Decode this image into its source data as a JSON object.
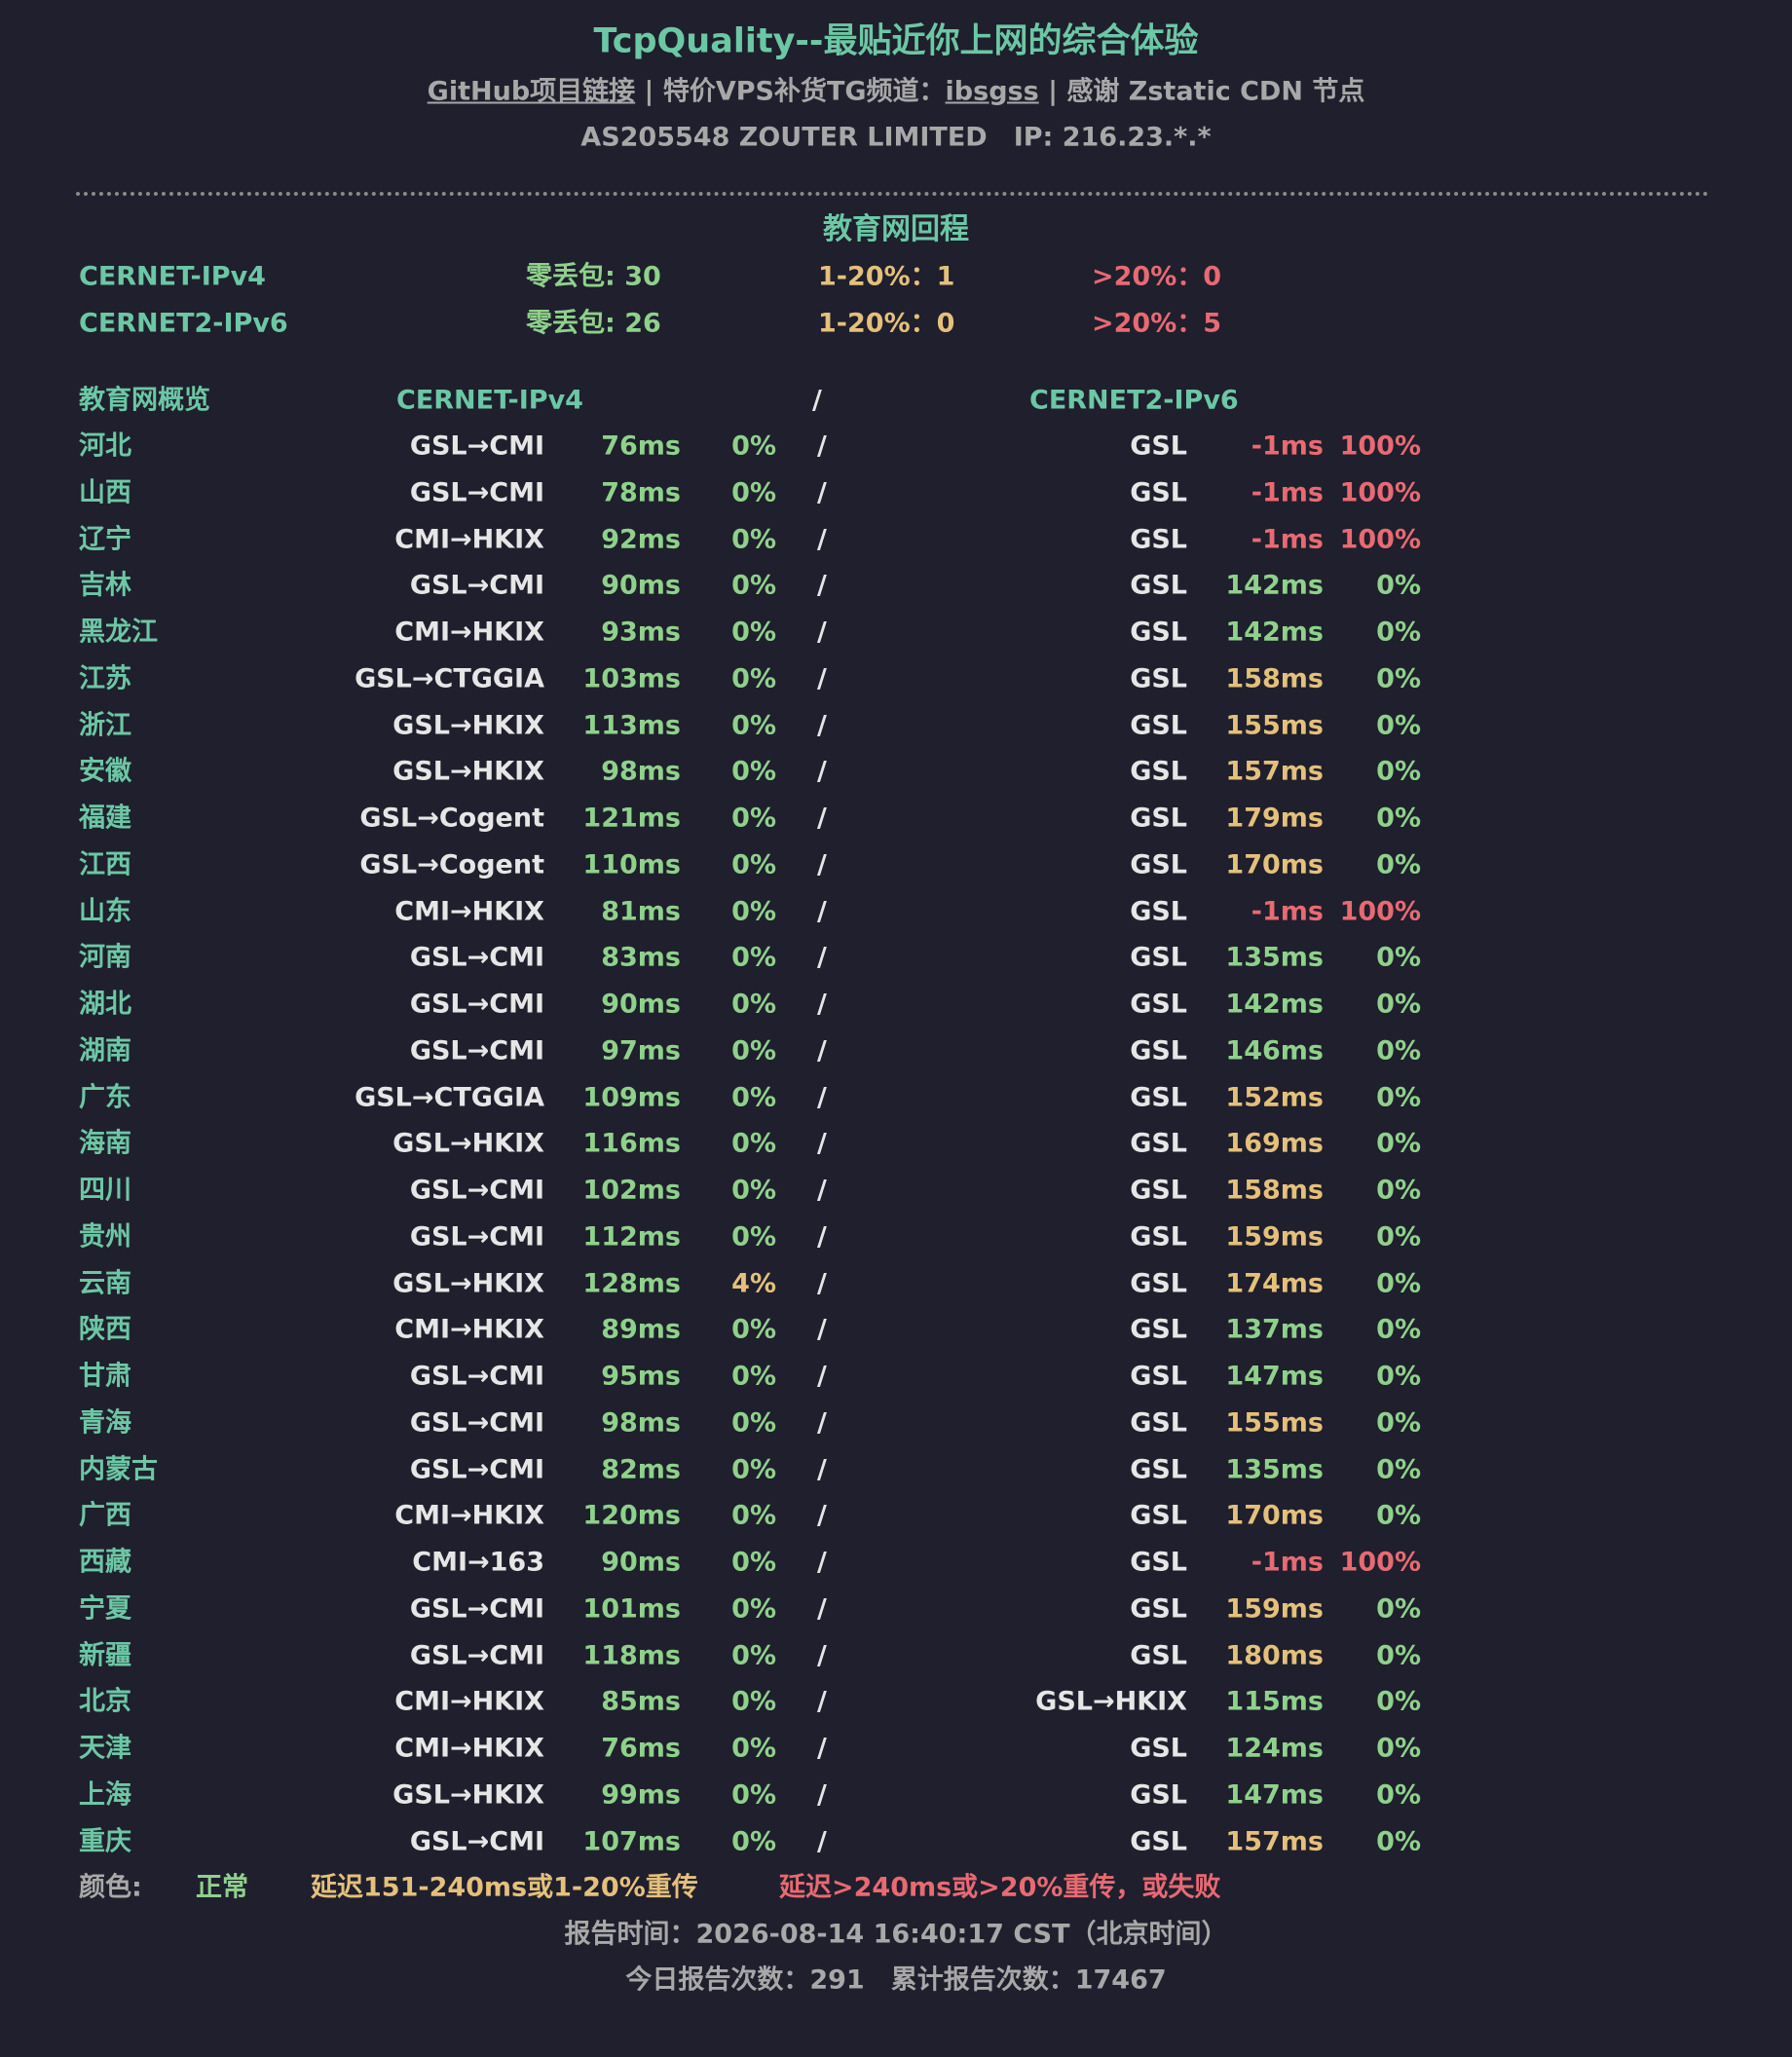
{
  "header": {
    "title": "TcpQuality--最贴近你上网的综合体验",
    "links": [
      "GitHub项目链接",
      "|",
      "特价VPS补货TG频道：",
      "ibsgss",
      "|",
      "感谢 Zstatic CDN 节点"
    ],
    "asn": "AS205548 ZOUTER LIMITED",
    "ip": "IP: 216.23.*.*"
  },
  "summary": {
    "title": "教育网回程",
    "rows": [
      [
        "CERNET-IPv4",
        "零丢包: 30",
        "1-20%：1",
        ">20%：0"
      ],
      [
        "CERNET2-IPv6",
        "零丢包: 26",
        "1-20%：0",
        ">20%：5"
      ]
    ]
  },
  "overview": {
    "header": [
      "教育网概览",
      "CERNET-IPv4",
      "/",
      "CERNET2-IPv6"
    ],
    "rows": [
      [
        "河北",
        "GSL→CMI",
        "76ms",
        "0%",
        "GSL",
        "-1ms",
        "100%"
      ],
      [
        "山西",
        "GSL→CMI",
        "78ms",
        "0%",
        "GSL",
        "-1ms",
        "100%"
      ],
      [
        "辽宁",
        "CMI→HKIX",
        "92ms",
        "0%",
        "GSL",
        "-1ms",
        "100%"
      ],
      [
        "吉林",
        "GSL→CMI",
        "90ms",
        "0%",
        "GSL",
        "142ms",
        "0%"
      ],
      [
        "黑龙江",
        "CMI→HKIX",
        "93ms",
        "0%",
        "GSL",
        "142ms",
        "0%"
      ],
      [
        "江苏",
        "GSL→CTGGIA",
        "103ms",
        "0%",
        "GSL",
        "158ms",
        "0%"
      ],
      [
        "浙江",
        "GSL→HKIX",
        "113ms",
        "0%",
        "GSL",
        "155ms",
        "0%"
      ],
      [
        "安徽",
        "GSL→HKIX",
        "98ms",
        "0%",
        "GSL",
        "157ms",
        "0%"
      ],
      [
        "福建",
        "GSL→Cogent",
        "121ms",
        "0%",
        "GSL",
        "179ms",
        "0%"
      ],
      [
        "江西",
        "GSL→Cogent",
        "110ms",
        "0%",
        "GSL",
        "170ms",
        "0%"
      ],
      [
        "山东",
        "CMI→HKIX",
        "81ms",
        "0%",
        "GSL",
        "-1ms",
        "100%"
      ],
      [
        "河南",
        "GSL→CMI",
        "83ms",
        "0%",
        "GSL",
        "135ms",
        "0%"
      ],
      [
        "湖北",
        "GSL→CMI",
        "90ms",
        "0%",
        "GSL",
        "142ms",
        "0%"
      ],
      [
        "湖南",
        "GSL→CMI",
        "97ms",
        "0%",
        "GSL",
        "146ms",
        "0%"
      ],
      [
        "广东",
        "GSL→CTGGIA",
        "109ms",
        "0%",
        "GSL",
        "152ms",
        "0%"
      ],
      [
        "海南",
        "GSL→HKIX",
        "116ms",
        "0%",
        "GSL",
        "169ms",
        "0%"
      ],
      [
        "四川",
        "GSL→CMI",
        "102ms",
        "0%",
        "GSL",
        "158ms",
        "0%"
      ],
      [
        "贵州",
        "GSL→CMI",
        "112ms",
        "0%",
        "GSL",
        "159ms",
        "0%"
      ],
      [
        "云南",
        "GSL→HKIX",
        "128ms",
        "4%",
        "GSL",
        "174ms",
        "0%"
      ],
      [
        "陕西",
        "CMI→HKIX",
        "89ms",
        "0%",
        "GSL",
        "137ms",
        "0%"
      ],
      [
        "甘肃",
        "GSL→CMI",
        "95ms",
        "0%",
        "GSL",
        "147ms",
        "0%"
      ],
      [
        "青海",
        "GSL→CMI",
        "98ms",
        "0%",
        "GSL",
        "155ms",
        "0%"
      ],
      [
        "内蒙古",
        "GSL→CMI",
        "82ms",
        "0%",
        "GSL",
        "135ms",
        "0%"
      ],
      [
        "广西",
        "CMI→HKIX",
        "120ms",
        "0%",
        "GSL",
        "170ms",
        "0%"
      ],
      [
        "西藏",
        "CMI→163",
        "90ms",
        "0%",
        "GSL",
        "-1ms",
        "100%"
      ],
      [
        "宁夏",
        "GSL→CMI",
        "101ms",
        "0%",
        "GSL",
        "159ms",
        "0%"
      ],
      [
        "新疆",
        "GSL→CMI",
        "118ms",
        "0%",
        "GSL",
        "180ms",
        "0%"
      ],
      [
        "北京",
        "CMI→HKIX",
        "85ms",
        "0%",
        "GSL→HKIX",
        "115ms",
        "0%"
      ],
      [
        "天津",
        "CMI→HKIX",
        "76ms",
        "0%",
        "GSL",
        "124ms",
        "0%"
      ],
      [
        "上海",
        "GSL→HKIX",
        "99ms",
        "0%",
        "GSL",
        "147ms",
        "0%"
      ],
      [
        "重庆",
        "GSL→CMI",
        "107ms",
        "0%",
        "GSL",
        "157ms",
        "0%"
      ]
    ]
  },
  "legend": [
    "颜色:",
    "正常",
    "延迟151-240ms或1-20%重传",
    "延迟>240ms或>20%重传，或失败"
  ],
  "footer": [
    "报告时间：2026-08-14 16:40:17 CST（北京时间）",
    "今日报告次数：291　累计报告次数：17467"
  ]
}
